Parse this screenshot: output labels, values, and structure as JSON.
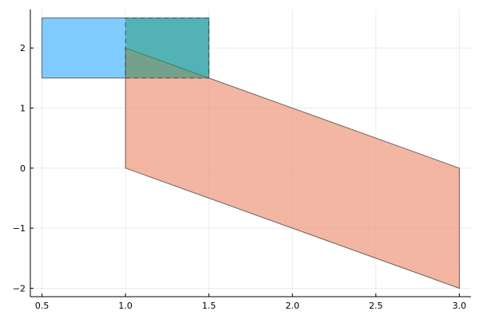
{
  "chart_data": {
    "type": "area",
    "title": "",
    "xlabel": "",
    "ylabel": "",
    "xlim": [
      0.43,
      3.07
    ],
    "ylim": [
      -2.14,
      2.64
    ],
    "grid": true,
    "legend": "none",
    "x_ticks": [
      0.5,
      1.0,
      1.5,
      2.0,
      2.5,
      3.0
    ],
    "x_tick_labels": [
      "0.5",
      "1.0",
      "1.5",
      "2.0",
      "2.5",
      "3.0"
    ],
    "y_ticks": [
      -2,
      -1,
      0,
      1,
      2
    ],
    "y_tick_labels": [
      "−2",
      "−1",
      "0",
      "1",
      "2"
    ],
    "series": [
      {
        "shape": "polygon",
        "color": "#6ec4ff",
        "opacity": 0.88,
        "dash": "solid",
        "points": [
          [
            0.5,
            1.5
          ],
          [
            1.5,
            1.5
          ],
          [
            1.5,
            2.5
          ],
          [
            0.5,
            2.5
          ]
        ]
      },
      {
        "shape": "polygon",
        "color": "#ec9477",
        "opacity": 0.68,
        "dash": "solid",
        "points": [
          [
            1.0,
            0.0
          ],
          [
            3.0,
            -2.0
          ],
          [
            3.0,
            0.0
          ],
          [
            1.0,
            2.0
          ]
        ]
      },
      {
        "shape": "polygon",
        "color": "#2e9e79",
        "opacity": 0.55,
        "dash": "dashed",
        "points": [
          [
            1.0,
            1.5
          ],
          [
            1.5,
            1.5
          ],
          [
            1.5,
            2.5
          ],
          [
            1.0,
            2.5
          ]
        ]
      }
    ]
  }
}
